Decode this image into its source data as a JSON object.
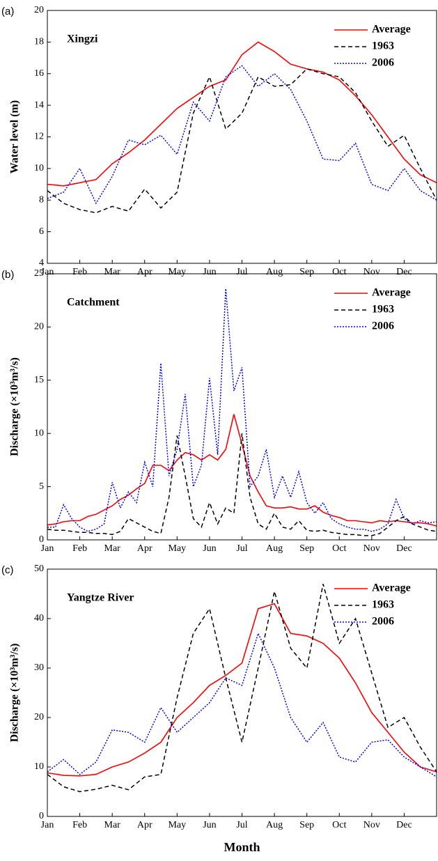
{
  "chart_data": [
    {
      "type": "line",
      "panel_label": "(a)",
      "title": "Xingzi",
      "y_label": "Water level (m)",
      "x": [
        0,
        0.5,
        1,
        1.5,
        2,
        2.5,
        3,
        3.5,
        4,
        4.5,
        5,
        5.5,
        6,
        6.5,
        7,
        7.5,
        8,
        8.5,
        9,
        9.5,
        10,
        10.5,
        11,
        11.5,
        12
      ],
      "xlim": [
        0,
        12
      ],
      "ylim": [
        4,
        20
      ],
      "yticks": [
        4,
        6,
        8,
        10,
        12,
        14,
        16,
        18,
        20
      ],
      "xticks": [
        {
          "value": 0,
          "label": "Jan"
        },
        {
          "value": 1,
          "label": "Feb"
        },
        {
          "value": 2,
          "label": "Mar"
        },
        {
          "value": 3,
          "label": "Apr"
        },
        {
          "value": 4,
          "label": "May"
        },
        {
          "value": 5,
          "label": "Jun"
        },
        {
          "value": 6,
          "label": "Jul"
        },
        {
          "value": 7,
          "label": "Aug"
        },
        {
          "value": 8,
          "label": "Sep"
        },
        {
          "value": 9,
          "label": "Oct"
        },
        {
          "value": 10,
          "label": "Nov"
        },
        {
          "value": 11,
          "label": "Dec"
        }
      ],
      "series": [
        {
          "name": "Average",
          "color": "#ff0000",
          "style": "solid",
          "values": [
            9.0,
            8.9,
            9.1,
            9.3,
            10.3,
            11.0,
            11.8,
            12.8,
            13.8,
            14.5,
            15.2,
            15.6,
            17.2,
            18.0,
            17.4,
            16.6,
            16.3,
            16.1,
            15.6,
            14.6,
            13.4,
            12.0,
            10.6,
            9.6,
            9.1
          ]
        },
        {
          "name": "1963",
          "color": "#000000",
          "style": "dashed",
          "values": [
            8.6,
            7.8,
            7.4,
            7.2,
            7.6,
            7.3,
            8.7,
            7.5,
            8.5,
            13.5,
            15.8,
            12.5,
            13.5,
            15.8,
            15.2,
            15.3,
            16.3,
            16.0,
            15.8,
            14.8,
            13.0,
            11.4,
            12.1,
            10.0,
            8.0
          ]
        },
        {
          "name": "2006",
          "color": "#0000ff",
          "style": "dotted",
          "values": [
            8.1,
            8.5,
            10.0,
            7.8,
            9.5,
            11.8,
            11.5,
            12.1,
            10.9,
            14.2,
            13.0,
            15.8,
            16.5,
            15.2,
            16.0,
            15.0,
            13.0,
            10.6,
            10.5,
            11.6,
            9.0,
            8.6,
            10.0,
            8.6,
            8.0
          ]
        }
      ]
    },
    {
      "type": "line",
      "panel_label": "(b)",
      "title": "Catchment",
      "y_label": "Discharge (×10³m³/s)",
      "x": [
        0,
        0.25,
        0.5,
        0.75,
        1,
        1.25,
        1.5,
        1.75,
        2,
        2.25,
        2.5,
        2.75,
        3,
        3.25,
        3.5,
        3.75,
        4,
        4.25,
        4.5,
        4.75,
        5,
        5.25,
        5.5,
        5.75,
        6,
        6.25,
        6.5,
        6.75,
        7,
        7.25,
        7.5,
        7.75,
        8,
        8.25,
        8.5,
        8.75,
        9,
        9.25,
        9.5,
        9.75,
        10,
        10.25,
        10.5,
        10.75,
        11,
        11.25,
        11.5,
        11.75,
        12
      ],
      "xlim": [
        0,
        12
      ],
      "ylim": [
        0,
        25
      ],
      "yticks": [
        0,
        5,
        10,
        15,
        20,
        25
      ],
      "xticks": [
        {
          "value": 0,
          "label": "Jan"
        },
        {
          "value": 1,
          "label": "Feb"
        },
        {
          "value": 2,
          "label": "Mar"
        },
        {
          "value": 3,
          "label": "Apr"
        },
        {
          "value": 4,
          "label": "May"
        },
        {
          "value": 5,
          "label": "Jun"
        },
        {
          "value": 6,
          "label": "Jul"
        },
        {
          "value": 7,
          "label": "Aug"
        },
        {
          "value": 8,
          "label": "Sep"
        },
        {
          "value": 9,
          "label": "Oct"
        },
        {
          "value": 10,
          "label": "Nov"
        },
        {
          "value": 11,
          "label": "Dec"
        }
      ],
      "series": [
        {
          "name": "Average",
          "color": "#ff0000",
          "style": "solid",
          "values": [
            1.4,
            1.5,
            1.7,
            1.8,
            1.8,
            2.2,
            2.4,
            2.8,
            3.2,
            3.8,
            4.2,
            4.8,
            5.3,
            7.0,
            7.0,
            6.5,
            7.5,
            8.2,
            8.0,
            7.5,
            8.0,
            7.5,
            8.5,
            11.8,
            9.0,
            6.0,
            4.5,
            3.2,
            3.0,
            3.0,
            3.1,
            2.9,
            2.9,
            3.2,
            2.6,
            2.3,
            2.1,
            1.8,
            1.8,
            1.7,
            1.6,
            1.8,
            1.7,
            1.8,
            1.7,
            1.6,
            1.6,
            1.5,
            1.3
          ]
        },
        {
          "name": "1963",
          "color": "#000000",
          "style": "dashed",
          "values": [
            1.0,
            0.9,
            0.9,
            0.8,
            0.7,
            0.7,
            0.6,
            0.6,
            0.5,
            0.8,
            2.0,
            1.6,
            1.2,
            0.8,
            0.6,
            4.0,
            9.8,
            6.0,
            2.0,
            1.2,
            3.5,
            1.5,
            3.0,
            2.5,
            10.0,
            4.0,
            1.5,
            1.0,
            2.5,
            1.2,
            1.0,
            1.8,
            0.9,
            0.8,
            0.9,
            0.7,
            0.6,
            0.5,
            0.5,
            0.4,
            0.4,
            0.6,
            1.2,
            1.8,
            2.2,
            1.5,
            1.2,
            0.9,
            0.8
          ]
        },
        {
          "name": "2006",
          "color": "#0000ff",
          "style": "dotted",
          "values": [
            1.2,
            1.2,
            3.3,
            2.0,
            1.2,
            0.8,
            1.0,
            1.5,
            5.4,
            3.0,
            4.5,
            3.5,
            7.3,
            5.0,
            16.6,
            6.0,
            8.5,
            13.7,
            5.0,
            7.0,
            15.2,
            8.0,
            23.6,
            14.0,
            16.2,
            5.0,
            6.0,
            8.5,
            4.0,
            6.0,
            4.0,
            6.4,
            3.5,
            2.5,
            3.5,
            2.0,
            1.5,
            1.2,
            1.0,
            1.0,
            0.8,
            1.0,
            1.5,
            3.8,
            2.0,
            1.5,
            1.8,
            1.6,
            1.7
          ]
        }
      ]
    },
    {
      "type": "line",
      "panel_label": "(c)",
      "title": "Yangtze River",
      "y_label": "Discharge (×10³m³/s)",
      "x_label": "Month",
      "x": [
        0,
        0.5,
        1,
        1.5,
        2,
        2.5,
        3,
        3.5,
        4,
        4.5,
        5,
        5.5,
        6,
        6.5,
        7,
        7.5,
        8,
        8.5,
        9,
        9.5,
        10,
        10.5,
        11,
        11.5,
        12
      ],
      "xlim": [
        0,
        12
      ],
      "ylim": [
        0,
        50
      ],
      "yticks": [
        0,
        10,
        20,
        30,
        40,
        50
      ],
      "xticks": [
        {
          "value": 0,
          "label": "Jan"
        },
        {
          "value": 1,
          "label": "Feb"
        },
        {
          "value": 2,
          "label": "Mar"
        },
        {
          "value": 3,
          "label": "Apr"
        },
        {
          "value": 4,
          "label": "May"
        },
        {
          "value": 5,
          "label": "Jun"
        },
        {
          "value": 6,
          "label": "Jul"
        },
        {
          "value": 7,
          "label": "Aug"
        },
        {
          "value": 8,
          "label": "Sep"
        },
        {
          "value": 9,
          "label": "Oct"
        },
        {
          "value": 10,
          "label": "Nov"
        },
        {
          "value": 11,
          "label": "Dec"
        }
      ],
      "series": [
        {
          "name": "Average",
          "color": "#ff0000",
          "style": "solid",
          "values": [
            8.8,
            8.3,
            8.2,
            8.5,
            10,
            11,
            12.8,
            15,
            20,
            23,
            26.5,
            28.5,
            31,
            42,
            43,
            37,
            36.5,
            35,
            32,
            27,
            21,
            17,
            13,
            10,
            9
          ]
        },
        {
          "name": "1963",
          "color": "#000000",
          "style": "dashed",
          "values": [
            8.5,
            6,
            5,
            5.5,
            6.3,
            5.4,
            8,
            8.5,
            24,
            37,
            42,
            28,
            15,
            30,
            45.5,
            34,
            30,
            47,
            35,
            40,
            29,
            18,
            20,
            14,
            9
          ]
        },
        {
          "name": "2006",
          "color": "#0000ff",
          "style": "dotted",
          "values": [
            9,
            11.5,
            8.5,
            11,
            17.5,
            17,
            15,
            22,
            17,
            20,
            23,
            28,
            26.5,
            37,
            30,
            20,
            15,
            19,
            12,
            11,
            15,
            15.5,
            12,
            10,
            8
          ]
        }
      ]
    }
  ]
}
